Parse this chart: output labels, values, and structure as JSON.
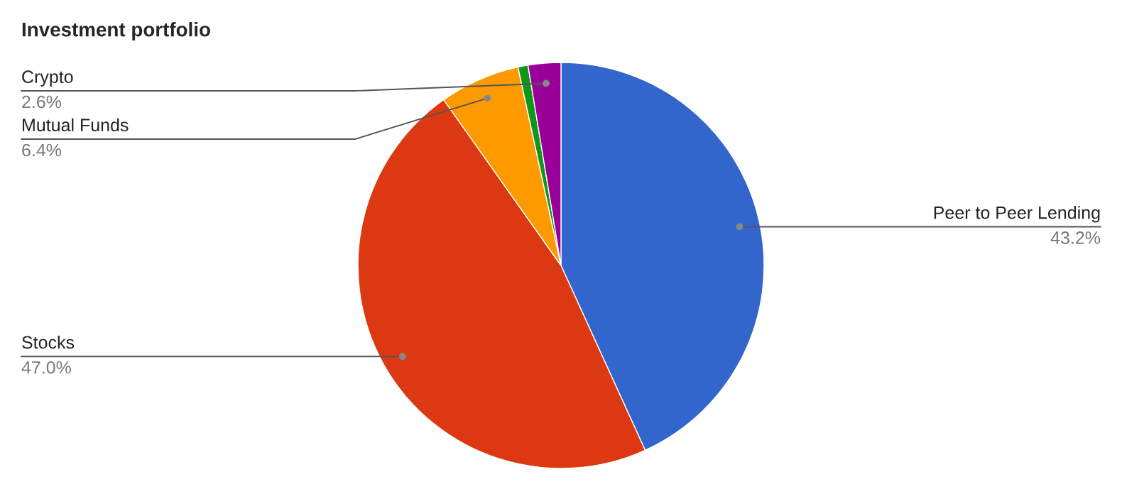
{
  "chart_data": {
    "type": "pie",
    "title": "Investment portfolio",
    "categories": [
      "Peer to Peer Lending",
      "Stocks",
      "Mutual Funds",
      null,
      "Crypto"
    ],
    "values": [
      43.2,
      47.0,
      6.4,
      0.8,
      2.6
    ],
    "colors": [
      "#3366cc",
      "#dc3912",
      "#ff9900",
      "#109618",
      "#990099"
    ],
    "value_labels": [
      "43.2%",
      "47.0%",
      "6.4%",
      null,
      "2.6%"
    ]
  }
}
